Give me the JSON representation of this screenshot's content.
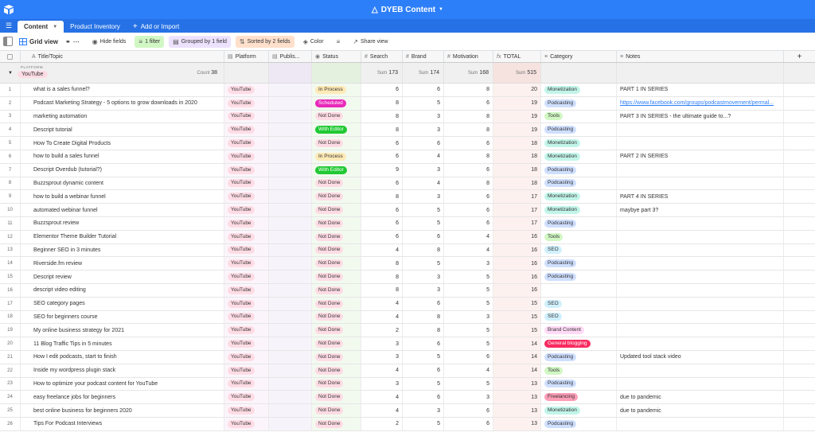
{
  "app": {
    "base_title": "DYEB Content"
  },
  "tabs": [
    {
      "label": "Content",
      "active": true
    },
    {
      "label": "Product Inventory",
      "active": false
    }
  ],
  "add_import_label": "Add or Import",
  "viewbar": {
    "view_name": "Grid view",
    "hide_fields": "Hide fields",
    "filter": "1 filter",
    "group": "Grouped by 1 field",
    "sort": "Sorted by 2 fields",
    "color": "Color",
    "share": "Share view"
  },
  "columns": {
    "title": "Title/Topic",
    "platform": "Platform",
    "pub": "Publis...",
    "status": "Status",
    "search": "Search",
    "brand": "Brand",
    "motivation": "Motivation",
    "total": "TOTAL",
    "category": "Category",
    "notes": "Notes"
  },
  "group": {
    "field_label": "PLATFORM",
    "value": "YouTube",
    "count_label": "Count",
    "count": "38",
    "sum_label": "Sum",
    "sum_search": "173",
    "sum_brand": "174",
    "sum_motivation": "168",
    "sum_total": "515"
  },
  "rows": [
    {
      "n": "1",
      "title": "what is a sales funnel?",
      "platform": "YouTube",
      "status": "In Process",
      "status_cls": "status-inprocess",
      "search": "6",
      "brand": "6",
      "mot": "8",
      "total": "20",
      "cat": "Monetization",
      "cat_cls": "cat-monetization",
      "notes": "PART 1 IN SERIES",
      "link": false
    },
    {
      "n": "2",
      "title": "Podcast Marketing Strategy - 5 options to grow downloads in 2020",
      "platform": "YouTube",
      "status": "Scheduled",
      "status_cls": "status-scheduled",
      "search": "8",
      "brand": "5",
      "mot": "6",
      "total": "19",
      "cat": "Podcasting",
      "cat_cls": "cat-podcasting",
      "notes": "https://www.facebook.com/groups/podcastmovement/permal...",
      "link": true
    },
    {
      "n": "3",
      "title": "marketing automation",
      "platform": "YouTube",
      "status": "Not Done",
      "status_cls": "status-notdone",
      "search": "8",
      "brand": "3",
      "mot": "8",
      "total": "19",
      "cat": "Tools",
      "cat_cls": "cat-tools",
      "notes": "PART 3 IN SERIES - the ultimate guide to...?",
      "link": false
    },
    {
      "n": "4",
      "title": "Descript tutorial",
      "platform": "YouTube",
      "status": "With Editor",
      "status_cls": "status-witheditor",
      "search": "8",
      "brand": "3",
      "mot": "8",
      "total": "19",
      "cat": "Podcasting",
      "cat_cls": "cat-podcasting",
      "notes": "",
      "link": false
    },
    {
      "n": "5",
      "title": "How To Create Digital Products",
      "platform": "YouTube",
      "status": "Not Done",
      "status_cls": "status-notdone",
      "search": "6",
      "brand": "6",
      "mot": "6",
      "total": "18",
      "cat": "Monetization",
      "cat_cls": "cat-monetization",
      "notes": "",
      "link": false
    },
    {
      "n": "6",
      "title": "how to build a sales funnel",
      "platform": "YouTube",
      "status": "In Process",
      "status_cls": "status-inprocess",
      "search": "6",
      "brand": "4",
      "mot": "8",
      "total": "18",
      "cat": "Monetization",
      "cat_cls": "cat-monetization",
      "notes": "PART 2 IN SERIES",
      "link": false
    },
    {
      "n": "7",
      "title": "Descript Overdub (tutorial?)",
      "platform": "YouTube",
      "status": "With Editor",
      "status_cls": "status-witheditor",
      "search": "9",
      "brand": "3",
      "mot": "6",
      "total": "18",
      "cat": "Podcasting",
      "cat_cls": "cat-podcasting",
      "notes": "",
      "link": false
    },
    {
      "n": "8",
      "title": "Buzzsprout dynamic content",
      "platform": "YouTube",
      "status": "Not Done",
      "status_cls": "status-notdone",
      "search": "6",
      "brand": "4",
      "mot": "8",
      "total": "18",
      "cat": "Podcasting",
      "cat_cls": "cat-podcasting",
      "notes": "",
      "link": false
    },
    {
      "n": "9",
      "title": "how to build a webinar funnel",
      "platform": "YouTube",
      "status": "Not Done",
      "status_cls": "status-notdone",
      "search": "8",
      "brand": "3",
      "mot": "6",
      "total": "17",
      "cat": "Monetization",
      "cat_cls": "cat-monetization",
      "notes": "PART 4 IN SERIES",
      "link": false
    },
    {
      "n": "10",
      "title": "automated webinar funnel",
      "platform": "YouTube",
      "status": "Not Done",
      "status_cls": "status-notdone",
      "search": "6",
      "brand": "5",
      "mot": "6",
      "total": "17",
      "cat": "Monetization",
      "cat_cls": "cat-monetization",
      "notes": "maybye part 3?",
      "link": false
    },
    {
      "n": "11",
      "title": "Buzzsprout review",
      "platform": "YouTube",
      "status": "Not Done",
      "status_cls": "status-notdone",
      "search": "6",
      "brand": "5",
      "mot": "6",
      "total": "17",
      "cat": "Podcasting",
      "cat_cls": "cat-podcasting",
      "notes": "",
      "link": false
    },
    {
      "n": "12",
      "title": "Elementor Theme Builder Tutorial",
      "platform": "YouTube",
      "status": "Not Done",
      "status_cls": "status-notdone",
      "search": "6",
      "brand": "6",
      "mot": "4",
      "total": "16",
      "cat": "Tools",
      "cat_cls": "cat-tools",
      "notes": "",
      "link": false
    },
    {
      "n": "13",
      "title": "Beginner SEO in 3 minutes",
      "platform": "YouTube",
      "status": "Not Done",
      "status_cls": "status-notdone",
      "search": "4",
      "brand": "8",
      "mot": "4",
      "total": "16",
      "cat": "SEO",
      "cat_cls": "cat-seo",
      "notes": "",
      "link": false
    },
    {
      "n": "14",
      "title": "Riverside.fm review",
      "platform": "YouTube",
      "status": "Not Done",
      "status_cls": "status-notdone",
      "search": "8",
      "brand": "5",
      "mot": "3",
      "total": "16",
      "cat": "Podcasting",
      "cat_cls": "cat-podcasting",
      "notes": "",
      "link": false
    },
    {
      "n": "15",
      "title": "Descript review",
      "platform": "YouTube",
      "status": "Not Done",
      "status_cls": "status-notdone",
      "search": "8",
      "brand": "3",
      "mot": "5",
      "total": "16",
      "cat": "Podcasting",
      "cat_cls": "cat-podcasting",
      "notes": "",
      "link": false
    },
    {
      "n": "16",
      "title": "descript video editing",
      "platform": "YouTube",
      "status": "Not Done",
      "status_cls": "status-notdone",
      "search": "8",
      "brand": "3",
      "mot": "5",
      "total": "16",
      "cat": "",
      "cat_cls": "",
      "notes": "",
      "link": false
    },
    {
      "n": "17",
      "title": "SEO category pages",
      "platform": "YouTube",
      "status": "Not Done",
      "status_cls": "status-notdone",
      "search": "4",
      "brand": "6",
      "mot": "5",
      "total": "15",
      "cat": "SEO",
      "cat_cls": "cat-seo",
      "notes": "",
      "link": false
    },
    {
      "n": "18",
      "title": "SEO for beginners course",
      "platform": "YouTube",
      "status": "Not Done",
      "status_cls": "status-notdone",
      "search": "4",
      "brand": "8",
      "mot": "3",
      "total": "15",
      "cat": "SEO",
      "cat_cls": "cat-seo",
      "notes": "",
      "link": false
    },
    {
      "n": "19",
      "title": "My online business strategy for 2021",
      "platform": "YouTube",
      "status": "Not Done",
      "status_cls": "status-notdone",
      "search": "2",
      "brand": "8",
      "mot": "5",
      "total": "15",
      "cat": "Brand Content",
      "cat_cls": "cat-brand",
      "notes": "",
      "link": false
    },
    {
      "n": "20",
      "title": "11 Blog Traffic Tips in 5 minutes",
      "platform": "YouTube",
      "status": "Not Done",
      "status_cls": "status-notdone",
      "search": "3",
      "brand": "6",
      "mot": "5",
      "total": "14",
      "cat": "General blogging",
      "cat_cls": "cat-general",
      "notes": "",
      "link": false
    },
    {
      "n": "21",
      "title": "How I edit podcasts, start to finish",
      "platform": "YouTube",
      "status": "Not Done",
      "status_cls": "status-notdone",
      "search": "3",
      "brand": "5",
      "mot": "6",
      "total": "14",
      "cat": "Podcasting",
      "cat_cls": "cat-podcasting",
      "notes": "Updated tool stack video",
      "link": false
    },
    {
      "n": "22",
      "title": "Inside my wordpress plugin stack",
      "platform": "YouTube",
      "status": "Not Done",
      "status_cls": "status-notdone",
      "search": "4",
      "brand": "6",
      "mot": "4",
      "total": "14",
      "cat": "Tools",
      "cat_cls": "cat-tools",
      "notes": "",
      "link": false
    },
    {
      "n": "23",
      "title": "How to optimize your podcast content for YouTube",
      "platform": "YouTube",
      "status": "Not Done",
      "status_cls": "status-notdone",
      "search": "3",
      "brand": "5",
      "mot": "5",
      "total": "13",
      "cat": "Podcasting",
      "cat_cls": "cat-podcasting",
      "notes": "",
      "link": false
    },
    {
      "n": "24",
      "title": "easy freelance jobs for beginners",
      "platform": "YouTube",
      "status": "Not Done",
      "status_cls": "status-notdone",
      "search": "4",
      "brand": "6",
      "mot": "3",
      "total": "13",
      "cat": "Freelancing",
      "cat_cls": "cat-freelancing",
      "notes": "due to pandemic",
      "link": false
    },
    {
      "n": "25",
      "title": "best online business for beginners 2020",
      "platform": "YouTube",
      "status": "Not Done",
      "status_cls": "status-notdone",
      "search": "4",
      "brand": "3",
      "mot": "6",
      "total": "13",
      "cat": "Monetization",
      "cat_cls": "cat-monetization",
      "notes": "due to pandemic",
      "link": false
    },
    {
      "n": "26",
      "title": "Tips For Podcast Interviews",
      "platform": "YouTube",
      "status": "Not Done",
      "status_cls": "status-notdone",
      "search": "2",
      "brand": "5",
      "mot": "6",
      "total": "13",
      "cat": "Podcasting",
      "cat_cls": "cat-podcasting",
      "notes": "",
      "link": false
    }
  ]
}
